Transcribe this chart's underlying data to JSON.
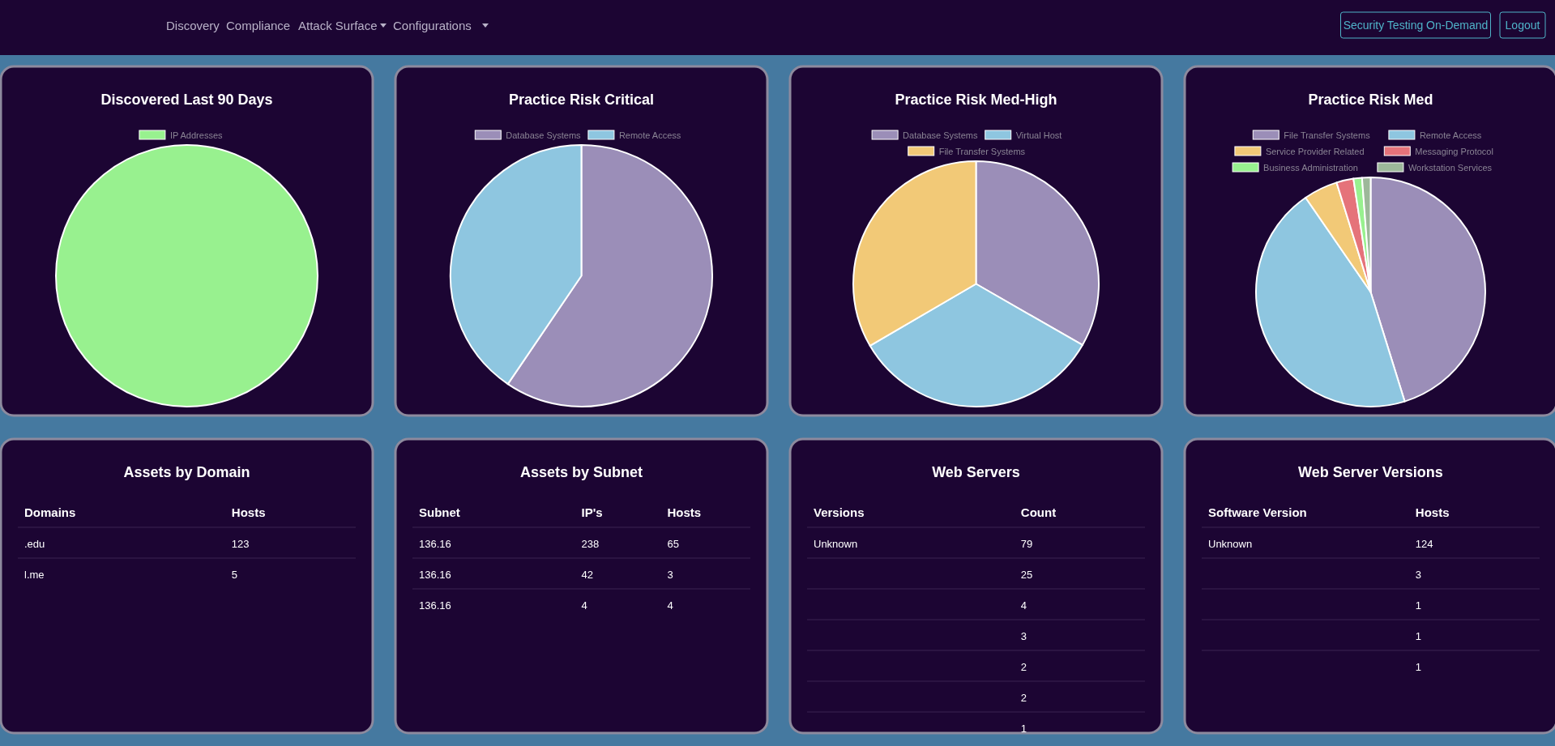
{
  "chart_data": [
    {
      "type": "other",
      "annotations": [
        "Discovery",
        "Compliance",
        "Attack Surface",
        "Configurations",
        "Security Testing On-Demand",
        "Logout"
      ]
    },
    {
      "type": "pie",
      "title": "Discovered Last 90 Days",
      "categories": [
        "IP Addresses"
      ],
      "values": [
        100
      ],
      "colors": [
        "#98f18f"
      ],
      "legend": "top"
    },
    {
      "type": "pie",
      "title": "Practice Risk Critical",
      "categories": [
        "Database Systems",
        "Remote Access"
      ],
      "values": [
        59.5,
        40.5
      ],
      "colors": [
        "#9b8eb8",
        "#8ec6e0"
      ],
      "legend": "top"
    },
    {
      "type": "pie",
      "title": "Practice Risk Med-High",
      "categories": [
        "Database Systems",
        "Virtual Host",
        "File Transfer Systems"
      ],
      "values": [
        33.3,
        33.3,
        33.4
      ],
      "colors": [
        "#9b8eb8",
        "#8ec6e0",
        "#f2c977"
      ],
      "legend": "top"
    },
    {
      "type": "pie",
      "title": "Practice Risk Med",
      "categories": [
        "File Transfer Systems",
        "Remote Access",
        "Service Provider Related",
        "Messaging Protocol",
        "Business Administration",
        "Workstation Services"
      ],
      "values": [
        45.2,
        45.2,
        4.8,
        2.4,
        1.2,
        1.2
      ],
      "colors": [
        "#9b8eb8",
        "#8ec6e0",
        "#f2c977",
        "#e5737a",
        "#98f18f",
        "#9db89a"
      ],
      "legend": "top"
    },
    {
      "type": "other",
      "data_labels": true,
      "title": "Assets by Domain",
      "xlabel": "Domains",
      "categories": [
        ".edu",
        "l.me"
      ],
      "series": [
        {
          "name": "Hosts",
          "values": [
            123,
            5
          ]
        }
      ]
    },
    {
      "type": "other",
      "data_labels": true,
      "title": "Assets by Subnet",
      "xlabel": "Subnet",
      "categories": [
        "136.16",
        "136.16",
        "136.16"
      ],
      "series": [
        {
          "name": "IP's",
          "values": [
            238,
            42,
            4
          ]
        },
        {
          "name": "Hosts",
          "values": [
            65,
            3,
            4
          ]
        }
      ]
    },
    {
      "type": "other",
      "data_labels": true,
      "title": "Web Servers",
      "xlabel": "Versions",
      "categories": [
        "Unknown",
        null,
        null,
        null,
        null,
        null,
        null
      ],
      "series": [
        {
          "name": "Count",
          "values": [
            79,
            25,
            4,
            3,
            2,
            2,
            1
          ]
        }
      ]
    },
    {
      "type": "other",
      "data_labels": true,
      "title": "Web Server Versions",
      "xlabel": "Software Version",
      "categories": [
        "Unknown",
        null,
        null,
        null,
        null
      ],
      "series": [
        {
          "name": "Hosts",
          "values": [
            124,
            3,
            1,
            1,
            1
          ]
        }
      ]
    }
  ]
}
